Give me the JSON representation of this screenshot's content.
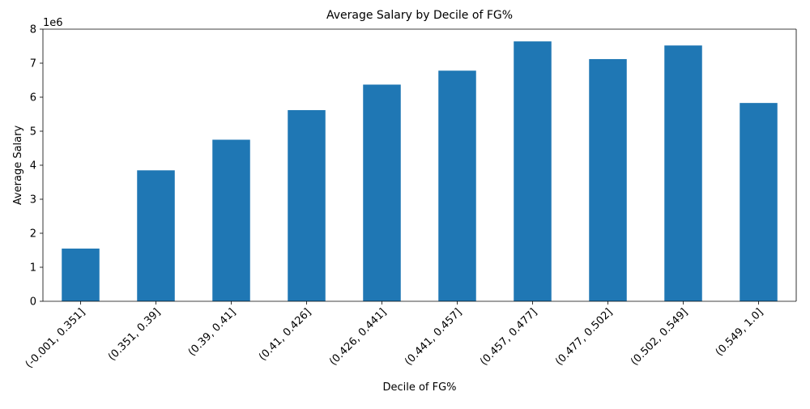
{
  "chart_data": {
    "type": "bar",
    "title": "Average Salary by Decile of FG%",
    "xlabel": "Decile of FG%",
    "ylabel": "Average Salary",
    "y_offset_label": "1e6",
    "categories": [
      "(-0.001, 0.351]",
      "(0.351, 0.39]",
      "(0.39, 0.41]",
      "(0.41, 0.426]",
      "(0.426, 0.441]",
      "(0.441, 0.457]",
      "(0.457, 0.477]",
      "(0.477, 0.502]",
      "(0.502, 0.549]",
      "(0.549, 1.0]"
    ],
    "values": [
      1550000,
      3850000,
      4750000,
      5620000,
      6370000,
      6780000,
      7640000,
      7120000,
      7520000,
      5830000
    ],
    "ylim": [
      0,
      8000000
    ],
    "yticks": [
      0,
      1,
      2,
      3,
      4,
      5,
      6,
      7,
      8
    ],
    "ytick_scale": 1000000,
    "grid": false,
    "legend": "none",
    "colors": {
      "bar": "#1f77b4",
      "axis": "#000000"
    }
  }
}
